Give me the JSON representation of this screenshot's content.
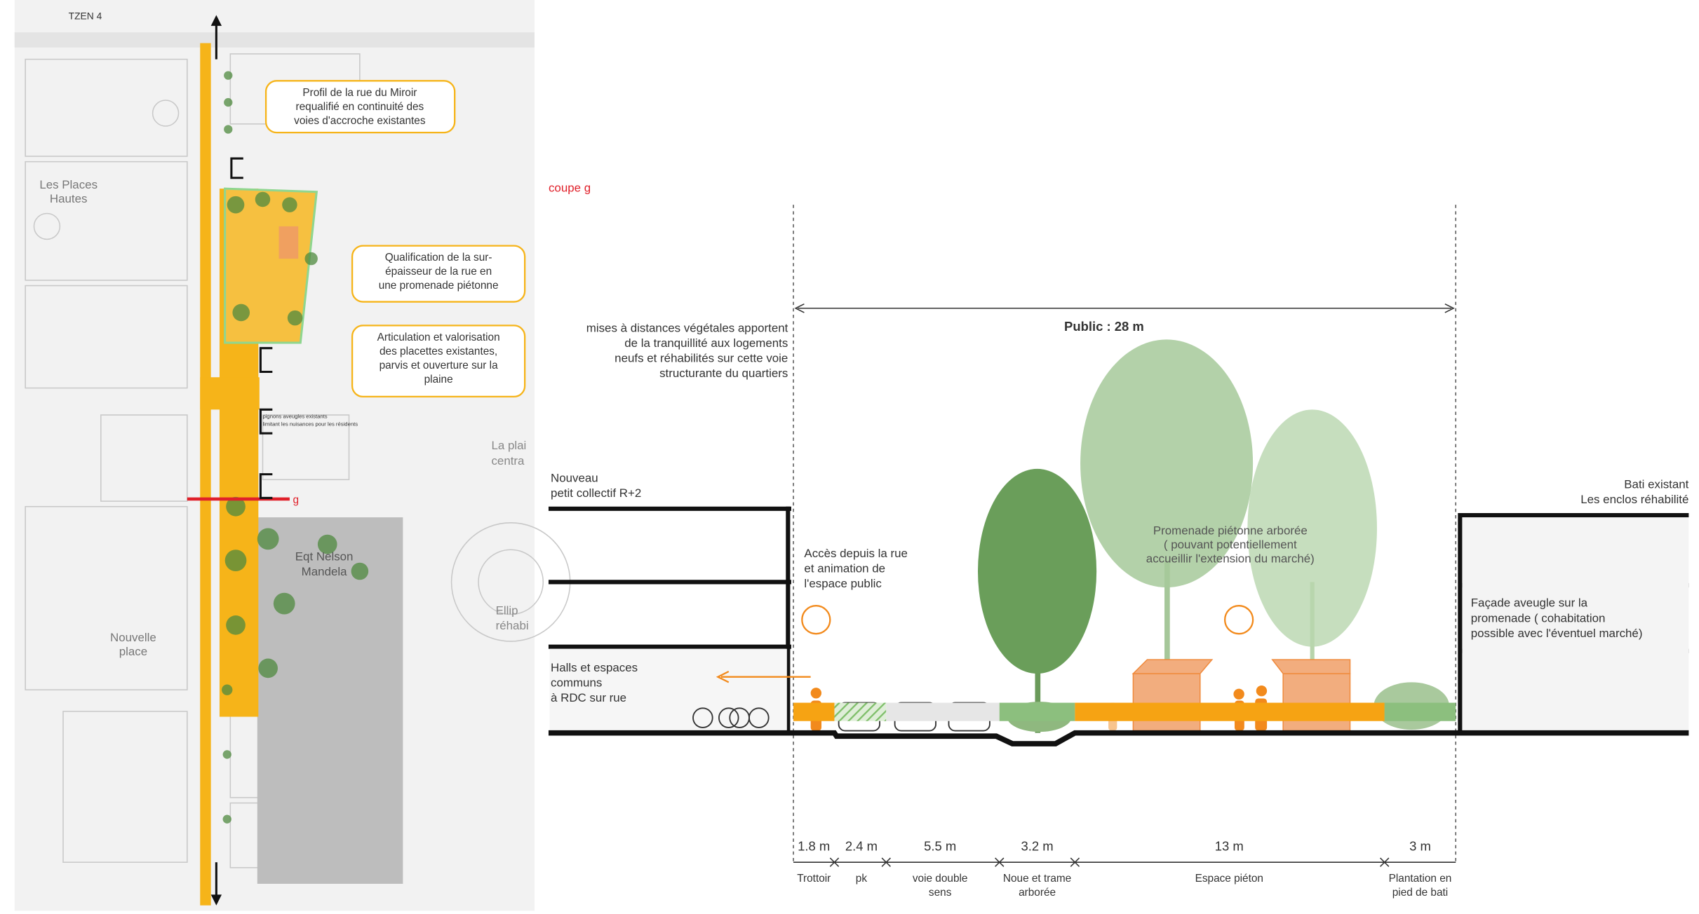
{
  "plan": {
    "rail_label": "TZEN 4",
    "districts": [
      {
        "lines": [
          "Les Places",
          "Hautes"
        ]
      },
      {
        "lines": [
          "La plai",
          "centra"
        ]
      },
      {
        "lines": [
          "Eqt Nelson",
          "Mandela"
        ]
      },
      {
        "lines": [
          "Ellip",
          "réhabi"
        ]
      },
      {
        "lines": [
          "Nouvelle",
          "place"
        ]
      }
    ],
    "callouts": [
      {
        "lines": [
          "Profil de la rue du Miroir",
          "requalifié en continuité des",
          "voies d'accroche existantes"
        ]
      },
      {
        "lines": [
          "Qualification de la sur-",
          "épaisseur de la rue en",
          "une promenade piétonne"
        ]
      },
      {
        "lines": [
          "Articulation et valorisation",
          "des placettes existantes,",
          "parvis et ouverture sur la",
          "plaine"
        ]
      }
    ],
    "small_note": {
      "lines": [
        "pignons aveugles existants",
        "limitant les nuisances pour les résidents"
      ]
    },
    "section_marker": "g"
  },
  "section": {
    "title": "coupe g",
    "public_width": "Public : 28 m",
    "notes": [
      {
        "lines": [
          "mises à distances végétales apportent",
          "de la tranquillité aux logements",
          "neufs et réhabilités sur cette voie",
          "structurante du quartiers"
        ]
      },
      {
        "lines": [
          "Nouveau",
          "petit collectif R+2"
        ]
      },
      {
        "lines": [
          "Accès depuis la rue",
          "et animation de",
          "l'espace public"
        ]
      },
      {
        "lines": [
          "Halls et espaces",
          "communs",
          "à RDC sur rue"
        ]
      },
      {
        "lines": [
          "Promenade piétonne arborée",
          "( pouvant potentiellement",
          "accueillir l'extension du marché)"
        ]
      },
      {
        "lines": [
          "Bati existant",
          "Les enclos réhabilité"
        ]
      },
      {
        "lines": [
          "Façade aveugle sur la",
          "promenade ( cohabitation",
          "possible avec l'éventuel marché)"
        ]
      }
    ],
    "profile": [
      {
        "width": "1.8 m",
        "label": [
          "Trottoir"
        ]
      },
      {
        "width": "2.4 m",
        "label": [
          "pk"
        ]
      },
      {
        "width": "5.5 m",
        "label": [
          "voie double",
          "sens"
        ]
      },
      {
        "width": "3.2 m",
        "label": [
          "Noue et trame",
          "arborée"
        ]
      },
      {
        "width": "13 m",
        "label": [
          "Espace piéton"
        ]
      },
      {
        "width": "3 m",
        "label": [
          "Plantation en",
          "pied de bati"
        ]
      }
    ]
  }
}
